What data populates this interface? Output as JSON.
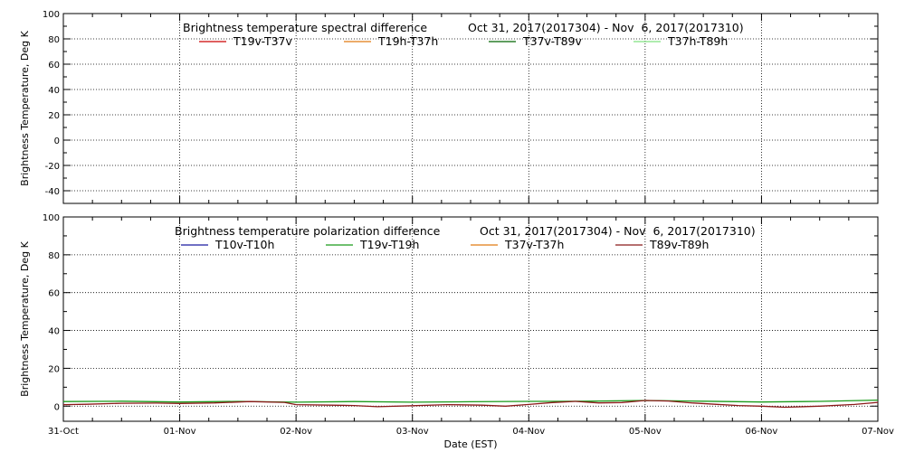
{
  "chart_data": [
    {
      "type": "line",
      "title": "Brightness temperature spectral difference",
      "date_range": "Oct 31, 2017(2017304) - Nov  6, 2017(2017310)",
      "ylabel": "Brightness Temperature, Deg K",
      "ylim": [
        -50,
        100
      ],
      "yticks": [
        "-40",
        "-20",
        "0",
        "20",
        "40",
        "60",
        "80",
        "100"
      ],
      "grid": "dotted",
      "legend_placement": "top",
      "series": [
        {
          "name": "T19v-T37v",
          "color": "#cc0000",
          "values": []
        },
        {
          "name": "T19h-T37h",
          "color": "#e07a10",
          "values": []
        },
        {
          "name": "T37v-T89v",
          "color": "#006400",
          "values": []
        },
        {
          "name": "T37h-T89h",
          "color": "#7fe07f",
          "values": []
        }
      ]
    },
    {
      "type": "line",
      "title": "Brightness temperature polarization difference",
      "date_range": "Oct 31, 2017(2017304) - Nov  6, 2017(2017310)",
      "ylabel": "Brightness Temperature, Deg K",
      "xlabel": "Date (EST)",
      "ylim": [
        -8,
        100
      ],
      "yticks": [
        "0",
        "20",
        "40",
        "60",
        "80",
        "100"
      ],
      "grid": "dotted",
      "legend_placement": "top",
      "xticks": [
        "31-Oct",
        "01-Nov",
        "02-Nov",
        "03-Nov",
        "04-Nov",
        "05-Nov",
        "06-Nov",
        "07-Nov"
      ],
      "x_range_days": [
        0,
        7
      ],
      "series": [
        {
          "name": "T10v-T10h",
          "color": "#1a1aa0",
          "values": []
        },
        {
          "name": "T19v-T19h",
          "color": "#1a9a1a",
          "values": [
            [
              0,
              2.4
            ],
            [
              0.5,
              2.6
            ],
            [
              1,
              2.2
            ],
            [
              1.5,
              2.5
            ],
            [
              2,
              2.1
            ],
            [
              2.5,
              2.4
            ],
            [
              3,
              2.1
            ],
            [
              3.5,
              2.3
            ],
            [
              4,
              2.5
            ],
            [
              4.5,
              2.6
            ],
            [
              5,
              3.0
            ],
            [
              5.5,
              2.6
            ],
            [
              6,
              2.2
            ],
            [
              6.5,
              2.5
            ],
            [
              7,
              3.2
            ]
          ]
        },
        {
          "name": "T37v-T37h",
          "color": "#e07a10",
          "values": []
        },
        {
          "name": "T89v-T89h",
          "color": "#8b1a1a",
          "values": [
            [
              0,
              0.8
            ],
            [
              0.2,
              1.0
            ],
            [
              0.5,
              1.5
            ],
            [
              0.8,
              1.6
            ],
            [
              1,
              1.4
            ],
            [
              1.3,
              1.7
            ],
            [
              1.6,
              2.4
            ],
            [
              1.9,
              2.0
            ],
            [
              2,
              0.8
            ],
            [
              2.3,
              0.5
            ],
            [
              2.5,
              0.3
            ],
            [
              2.7,
              -0.3
            ],
            [
              3,
              0.2
            ],
            [
              3.3,
              0.8
            ],
            [
              3.6,
              0.5
            ],
            [
              3.8,
              0.0
            ],
            [
              4,
              0.9
            ],
            [
              4.2,
              1.9
            ],
            [
              4.4,
              2.5
            ],
            [
              4.6,
              1.7
            ],
            [
              4.8,
              1.9
            ],
            [
              5,
              3.0
            ],
            [
              5.2,
              2.7
            ],
            [
              5.4,
              1.7
            ],
            [
              5.6,
              1.0
            ],
            [
              5.8,
              0.3
            ],
            [
              6,
              0.0
            ],
            [
              6.2,
              -0.6
            ],
            [
              6.5,
              0.0
            ],
            [
              6.8,
              0.9
            ],
            [
              7,
              2.0
            ]
          ]
        }
      ]
    }
  ]
}
